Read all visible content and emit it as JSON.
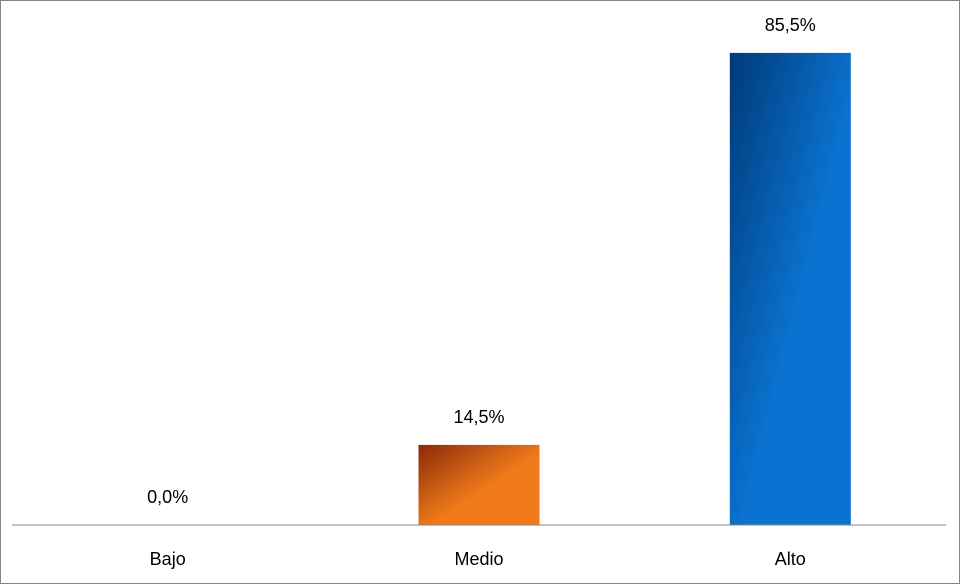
{
  "chart_data": {
    "type": "bar",
    "title": "",
    "xlabel": "",
    "ylabel": "",
    "categories": [
      "Bajo",
      "Medio",
      "Alto"
    ],
    "values": [
      0.0,
      14.5,
      85.5
    ],
    "data_labels": [
      "0,0%",
      "14,5%",
      "85,5%"
    ],
    "unit": "%",
    "ylim": [
      0,
      90
    ],
    "grid": false,
    "legend": "none",
    "colors": {
      "Bajo": {
        "dark": "#8a2a0a",
        "light": "#f07a1a"
      },
      "Medio": {
        "dark": "#8a2a0a",
        "light": "#f07a1a"
      },
      "Alto": {
        "dark": "#003a78",
        "light": "#0a72d0"
      }
    },
    "axis_color": "#868686"
  }
}
